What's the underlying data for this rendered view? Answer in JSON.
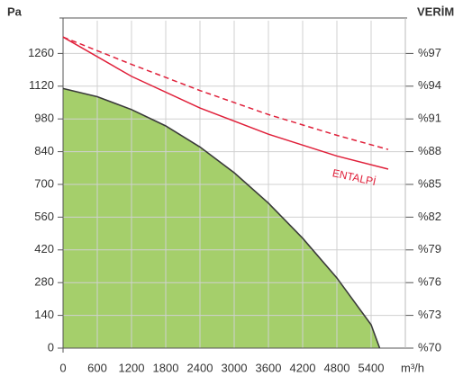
{
  "chart_data": {
    "type": "line",
    "y_label": "Pa",
    "y2_label": "VERİM",
    "x_label": "m³/h",
    "xlim": [
      0,
      6000
    ],
    "xticks": [
      0,
      600,
      1200,
      1800,
      2400,
      3000,
      3600,
      4200,
      4800,
      5400
    ],
    "ylim": [
      0,
      1400
    ],
    "yticks": [
      0,
      140,
      280,
      420,
      560,
      700,
      840,
      980,
      1120,
      1260
    ],
    "y2lim": [
      70,
      100
    ],
    "y2ticks": [
      {
        "value": 70,
        "label": "%70"
      },
      {
        "value": 73,
        "label": "%73"
      },
      {
        "value": 76,
        "label": "%76"
      },
      {
        "value": 79,
        "label": "%79"
      },
      {
        "value": 82,
        "label": "%82"
      },
      {
        "value": 85,
        "label": "%85"
      },
      {
        "value": 88,
        "label": "%88"
      },
      {
        "value": 91,
        "label": "%91"
      },
      {
        "value": 94,
        "label": "%94"
      },
      {
        "value": 97,
        "label": "%97"
      }
    ],
    "grid": true,
    "series": [
      {
        "x": [
          0,
          600,
          1200,
          1800,
          2400,
          3000,
          3600,
          4200,
          4800,
          5400,
          5550
        ],
        "values": [
          1110,
          1075,
          1020,
          950,
          860,
          750,
          620,
          470,
          300,
          100,
          0
        ],
        "color": "#3a3a3a",
        "fill": "#a5cf6b"
      },
      {
        "name": "ENTALPİ",
        "axis": "y2",
        "x": [
          0,
          1200,
          2400,
          3600,
          4800,
          5700
        ],
        "values": [
          98.5,
          94.9,
          92.0,
          89.6,
          87.6,
          86.4
        ],
        "color": "#e0203a"
      },
      {
        "axis": "y2",
        "x": [
          0,
          1200,
          2400,
          3600,
          4800,
          5700
        ],
        "values": [
          98.5,
          96.0,
          93.6,
          91.4,
          89.5,
          88.2
        ],
        "color": "#e0203a",
        "dash": true
      }
    ]
  }
}
